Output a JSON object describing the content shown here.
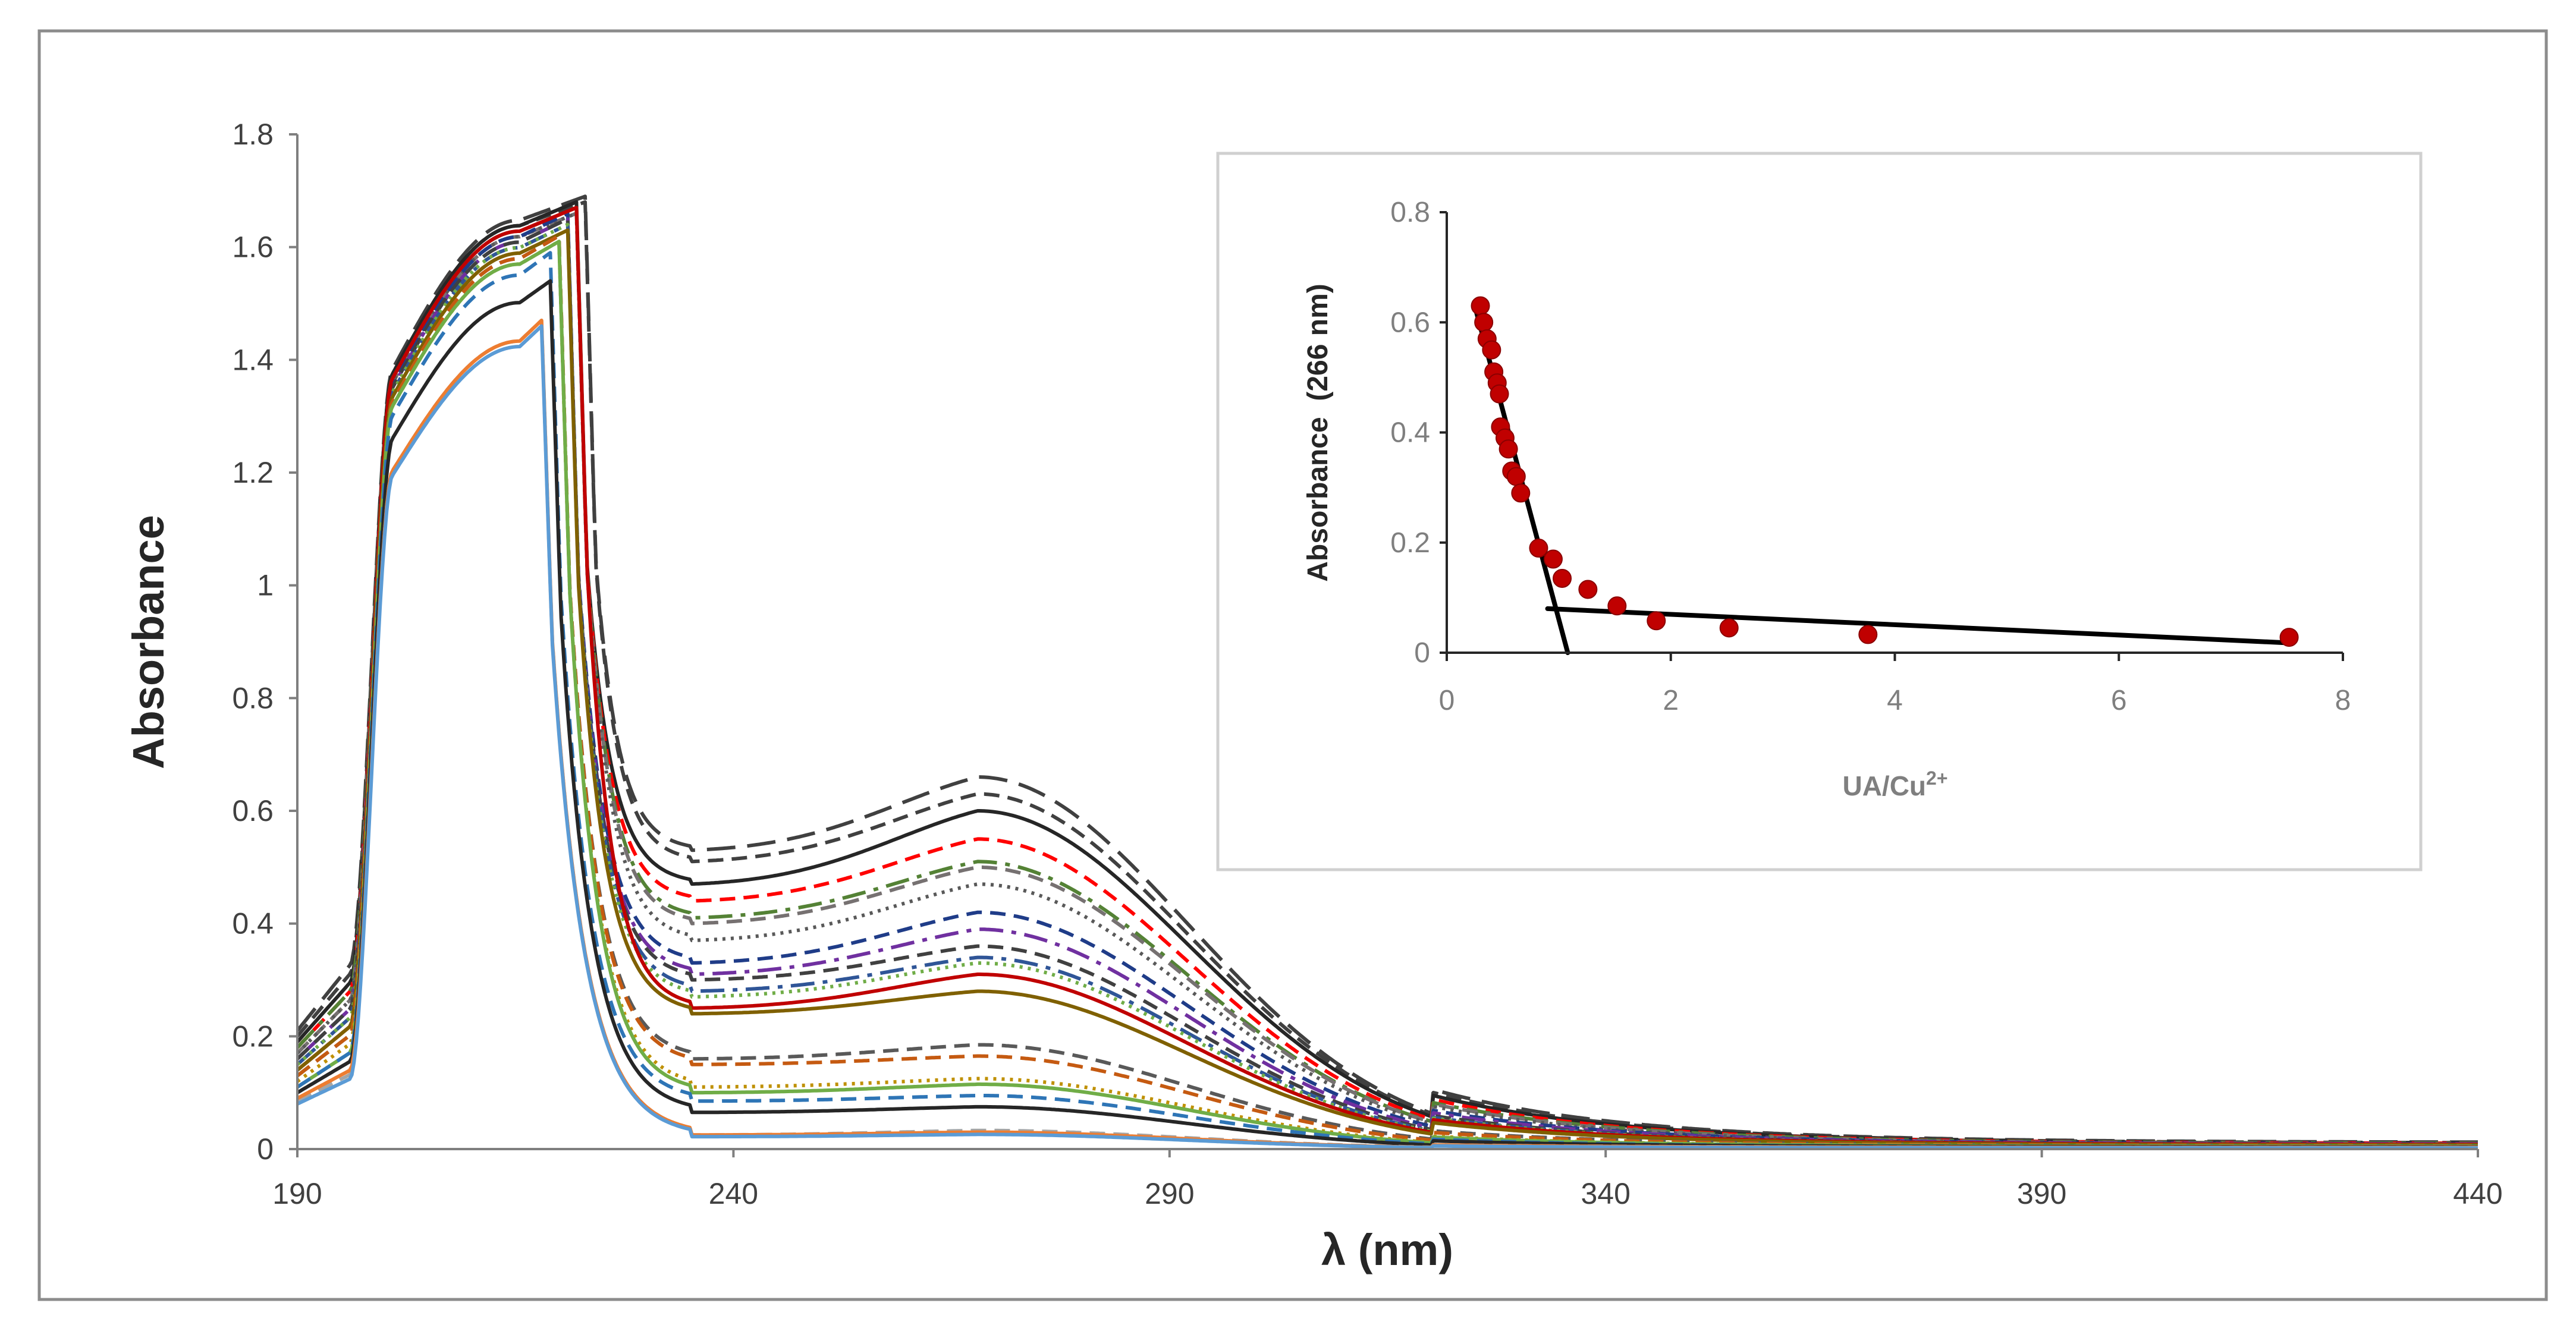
{
  "chart_data": [
    {
      "type": "line",
      "name": "main-spectra",
      "title": "",
      "xlabel": "λ (nm)",
      "ylabel": "Absorbance",
      "xlim": [
        190,
        440
      ],
      "ylim": [
        0,
        1.8
      ],
      "xticks": [
        190,
        240,
        290,
        340,
        390,
        440
      ],
      "yticks": [
        0,
        0.2,
        0.4,
        0.6,
        0.8,
        1,
        1.2,
        1.4,
        1.6,
        1.8
      ],
      "grid": false,
      "legend": "none",
      "series": [
        {
          "name": "s1",
          "color": "#404040",
          "dash": "long-dash",
          "start": 0.21,
          "peak": 1.69,
          "edge": 223,
          "dip": 0.53,
          "band": 0.66,
          "tail": 0.012
        },
        {
          "name": "s2",
          "color": "#404040",
          "dash": "dash",
          "start": 0.2,
          "peak": 1.68,
          "edge": 223,
          "dip": 0.51,
          "band": 0.63,
          "tail": 0.011
        },
        {
          "name": "s3",
          "color": "#262626",
          "dash": "solid",
          "start": 0.19,
          "peak": 1.68,
          "edge": 222,
          "dip": 0.47,
          "band": 0.6,
          "tail": 0.01
        },
        {
          "name": "s4",
          "color": "#ff0000",
          "dash": "dash",
          "start": 0.18,
          "peak": 1.67,
          "edge": 222,
          "dip": 0.44,
          "band": 0.55,
          "tail": 0.01
        },
        {
          "name": "s5",
          "color": "#548235",
          "dash": "long-dash-dot",
          "start": 0.18,
          "peak": 1.67,
          "edge": 222,
          "dip": 0.41,
          "band": 0.51,
          "tail": 0.01
        },
        {
          "name": "s6",
          "color": "#767171",
          "dash": "dash",
          "start": 0.17,
          "peak": 1.66,
          "edge": 222,
          "dip": 0.4,
          "band": 0.5,
          "tail": 0.009
        },
        {
          "name": "s7",
          "color": "#595959",
          "dash": "dot",
          "start": 0.17,
          "peak": 1.66,
          "edge": 222,
          "dip": 0.37,
          "band": 0.47,
          "tail": 0.009
        },
        {
          "name": "s8",
          "color": "#1f3c88",
          "dash": "dash",
          "start": 0.16,
          "peak": 1.66,
          "edge": 221,
          "dip": 0.33,
          "band": 0.42,
          "tail": 0.009
        },
        {
          "name": "s9",
          "color": "#7030a0",
          "dash": "long-dash-dot",
          "start": 0.16,
          "peak": 1.65,
          "edge": 221,
          "dip": 0.31,
          "band": 0.39,
          "tail": 0.009
        },
        {
          "name": "s10",
          "color": "#404040",
          "dash": "dash",
          "start": 0.16,
          "peak": 1.65,
          "edge": 221,
          "dip": 0.3,
          "band": 0.36,
          "tail": 0.008
        },
        {
          "name": "s11",
          "color": "#2f5597",
          "dash": "long-dash-dot",
          "start": 0.15,
          "peak": 1.64,
          "edge": 221,
          "dip": 0.28,
          "band": 0.34,
          "tail": 0.008
        },
        {
          "name": "s12",
          "color": "#70ad47",
          "dash": "dot",
          "start": 0.15,
          "peak": 1.64,
          "edge": 221,
          "dip": 0.27,
          "band": 0.33,
          "tail": 0.008
        },
        {
          "name": "s13",
          "color": "#c00000",
          "dash": "solid",
          "start": 0.14,
          "peak": 1.67,
          "edge": 222,
          "dip": 0.25,
          "band": 0.31,
          "tail": 0.008
        },
        {
          "name": "s14",
          "color": "#7f6000",
          "dash": "solid",
          "start": 0.14,
          "peak": 1.63,
          "edge": 221,
          "dip": 0.24,
          "band": 0.28,
          "tail": 0.007
        },
        {
          "name": "s15",
          "color": "#595959",
          "dash": "dash",
          "start": 0.13,
          "peak": 1.62,
          "edge": 220,
          "dip": 0.16,
          "band": 0.185,
          "tail": 0.006
        },
        {
          "name": "s16",
          "color": "#c55a11",
          "dash": "dash",
          "start": 0.13,
          "peak": 1.62,
          "edge": 220,
          "dip": 0.15,
          "band": 0.165,
          "tail": 0.006
        },
        {
          "name": "s17",
          "color": "#bf9000",
          "dash": "dot",
          "start": 0.12,
          "peak": 1.61,
          "edge": 220,
          "dip": 0.11,
          "band": 0.125,
          "tail": 0.005
        },
        {
          "name": "s18",
          "color": "#70ad47",
          "dash": "solid",
          "start": 0.11,
          "peak": 1.61,
          "edge": 220,
          "dip": 0.1,
          "band": 0.115,
          "tail": 0.005
        },
        {
          "name": "s19",
          "color": "#2e75b6",
          "dash": "dash",
          "start": 0.11,
          "peak": 1.59,
          "edge": 219,
          "dip": 0.085,
          "band": 0.095,
          "tail": 0.004
        },
        {
          "name": "s20",
          "color": "#262626",
          "dash": "solid",
          "start": 0.1,
          "peak": 1.54,
          "edge": 219,
          "dip": 0.065,
          "band": 0.075,
          "tail": 0.004
        },
        {
          "name": "s21",
          "color": "#a5a5a5",
          "dash": "dash",
          "start": 0.085,
          "peak": 1.47,
          "edge": 218,
          "dip": 0.025,
          "band": 0.033,
          "tail": 0.003
        },
        {
          "name": "s22",
          "color": "#ed7d31",
          "dash": "solid",
          "start": 0.09,
          "peak": 1.47,
          "edge": 218,
          "dip": 0.025,
          "band": 0.03,
          "tail": 0.003
        },
        {
          "name": "s23",
          "color": "#5b9bd5",
          "dash": "solid",
          "start": 0.08,
          "peak": 1.46,
          "edge": 218,
          "dip": 0.022,
          "band": 0.026,
          "tail": 0.002
        }
      ]
    },
    {
      "type": "scatter",
      "name": "inset-mole-ratio",
      "title": "",
      "xlabel": "UA/Cu",
      "xlabel_sup": "2+",
      "ylabel": "Absorbance  (266 nm)",
      "xlim": [
        0,
        8
      ],
      "ylim": [
        0,
        0.8
      ],
      "xticks": [
        0,
        2,
        4,
        6,
        8
      ],
      "yticks": [
        0,
        0.2,
        0.4,
        0.6,
        0.8
      ],
      "grid": false,
      "legend": "none",
      "marker_color": "#c00000",
      "points": [
        {
          "x": 0.3,
          "y": 0.63
        },
        {
          "x": 0.33,
          "y": 0.6
        },
        {
          "x": 0.36,
          "y": 0.57
        },
        {
          "x": 0.4,
          "y": 0.55
        },
        {
          "x": 0.42,
          "y": 0.51
        },
        {
          "x": 0.45,
          "y": 0.49
        },
        {
          "x": 0.47,
          "y": 0.47
        },
        {
          "x": 0.48,
          "y": 0.41
        },
        {
          "x": 0.52,
          "y": 0.39
        },
        {
          "x": 0.55,
          "y": 0.37
        },
        {
          "x": 0.58,
          "y": 0.33
        },
        {
          "x": 0.62,
          "y": 0.32
        },
        {
          "x": 0.66,
          "y": 0.29
        },
        {
          "x": 0.82,
          "y": 0.19
        },
        {
          "x": 0.95,
          "y": 0.17
        },
        {
          "x": 1.03,
          "y": 0.135
        },
        {
          "x": 1.26,
          "y": 0.115
        },
        {
          "x": 1.52,
          "y": 0.085
        },
        {
          "x": 1.87,
          "y": 0.058
        },
        {
          "x": 2.52,
          "y": 0.045
        },
        {
          "x": 3.76,
          "y": 0.033
        },
        {
          "x": 7.52,
          "y": 0.028
        }
      ],
      "fit_lines": [
        {
          "name": "steep-fit",
          "x": [
            0.25,
            1.08
          ],
          "y": [
            0.63,
            0.0
          ]
        },
        {
          "name": "flat-fit",
          "x": [
            0.9,
            7.5
          ],
          "y": [
            0.08,
            0.018
          ]
        }
      ]
    }
  ]
}
